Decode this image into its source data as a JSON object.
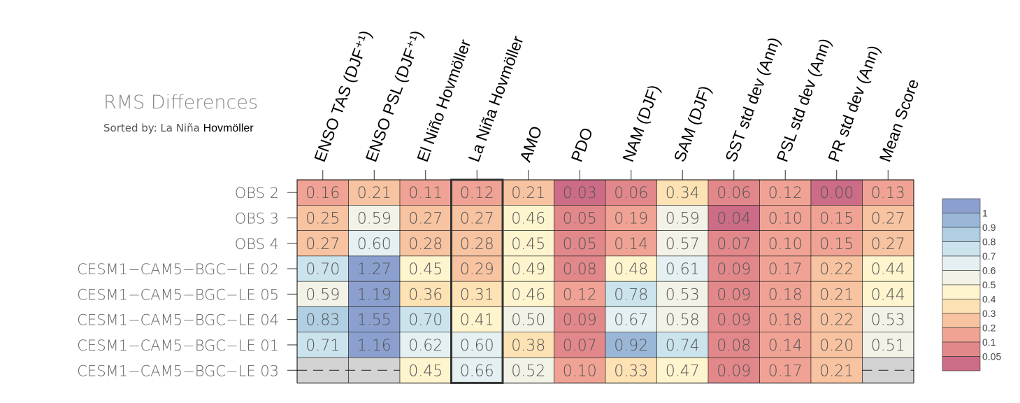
{
  "chart_data": {
    "type": "heatmap",
    "title": "RMS Differences",
    "subtitle_prefix": "Sorted by: La Niña ",
    "subtitle_bold": "Hovmöller",
    "columns": [
      "ENSO TAS (DJF⁺¹)",
      "ENSO PSL (DJF⁺¹)",
      "El Niño Hovmöller",
      "La Niña Hovmöller",
      "AMO",
      "PDO",
      "NAM (DJF)",
      "SAM (DJF)",
      "SST std dev (Ann)",
      "PSL std dev (Ann)",
      "PR std dev (Ann)",
      "Mean Score"
    ],
    "rows": [
      "OBS 2",
      "OBS 3",
      "OBS 4",
      "CESM1−CAM5−BGC−LE 02",
      "CESM1−CAM5−BGC−LE 05",
      "CESM1−CAM5−BGC−LE 04",
      "CESM1−CAM5−BGC−LE 01",
      "CESM1−CAM5−BGC−LE 03"
    ],
    "values": [
      [
        "0.16",
        "0.21",
        "0.11",
        "0.12",
        "0.21",
        "0.03",
        "0.06",
        "0.34",
        "0.06",
        "0.12",
        "0.00",
        "0.13"
      ],
      [
        "0.25",
        "0.59",
        "0.27",
        "0.27",
        "0.46",
        "0.05",
        "0.19",
        "0.59",
        "0.04",
        "0.10",
        "0.15",
        "0.27"
      ],
      [
        "0.27",
        "0.60",
        "0.28",
        "0.28",
        "0.45",
        "0.05",
        "0.14",
        "0.57",
        "0.07",
        "0.10",
        "0.15",
        "0.27"
      ],
      [
        "0.70",
        "1.27",
        "0.45",
        "0.29",
        "0.49",
        "0.08",
        "0.48",
        "0.61",
        "0.09",
        "0.17",
        "0.22",
        "0.44"
      ],
      [
        "0.59",
        "1.19",
        "0.36",
        "0.31",
        "0.46",
        "0.12",
        "0.78",
        "0.53",
        "0.09",
        "0.18",
        "0.21",
        "0.44"
      ],
      [
        "0.83",
        "1.55",
        "0.70",
        "0.41",
        "0.50",
        "0.09",
        "0.67",
        "0.58",
        "0.09",
        "0.18",
        "0.22",
        "0.53"
      ],
      [
        "0.71",
        "1.16",
        "0.62",
        "0.60",
        "0.38",
        "0.07",
        "0.92",
        "0.74",
        "0.08",
        "0.14",
        "0.20",
        "0.51"
      ],
      [
        null,
        null,
        "0.45",
        "0.66",
        "0.52",
        "0.10",
        "0.33",
        "0.47",
        "0.09",
        "0.17",
        "0.21",
        null
      ]
    ],
    "missing_value_label": "−−−",
    "highlighted_column": "La Niña Hovmöller",
    "colorbar": {
      "levels": [
        0.05,
        0.1,
        0.2,
        0.3,
        0.4,
        0.5,
        0.6,
        0.7,
        0.8,
        0.9,
        1
      ],
      "labels": [
        "1",
        "0.9",
        "0.8",
        "0.7",
        "0.6",
        "0.5",
        "0.4",
        "0.3",
        "0.2",
        "0.1",
        "0.05"
      ],
      "colors": [
        "#cc6c86",
        "#e2888a",
        "#f0a394",
        "#f8c3a0",
        "#fde2b4",
        "#fef4ce",
        "#f3f2e6",
        "#e4f0f1",
        "#cbe3ec",
        "#b1cfe2",
        "#9ab7d8",
        "#8ca0cf"
      ],
      "missing_color": "#d3d3d3",
      "placement": "right"
    }
  }
}
